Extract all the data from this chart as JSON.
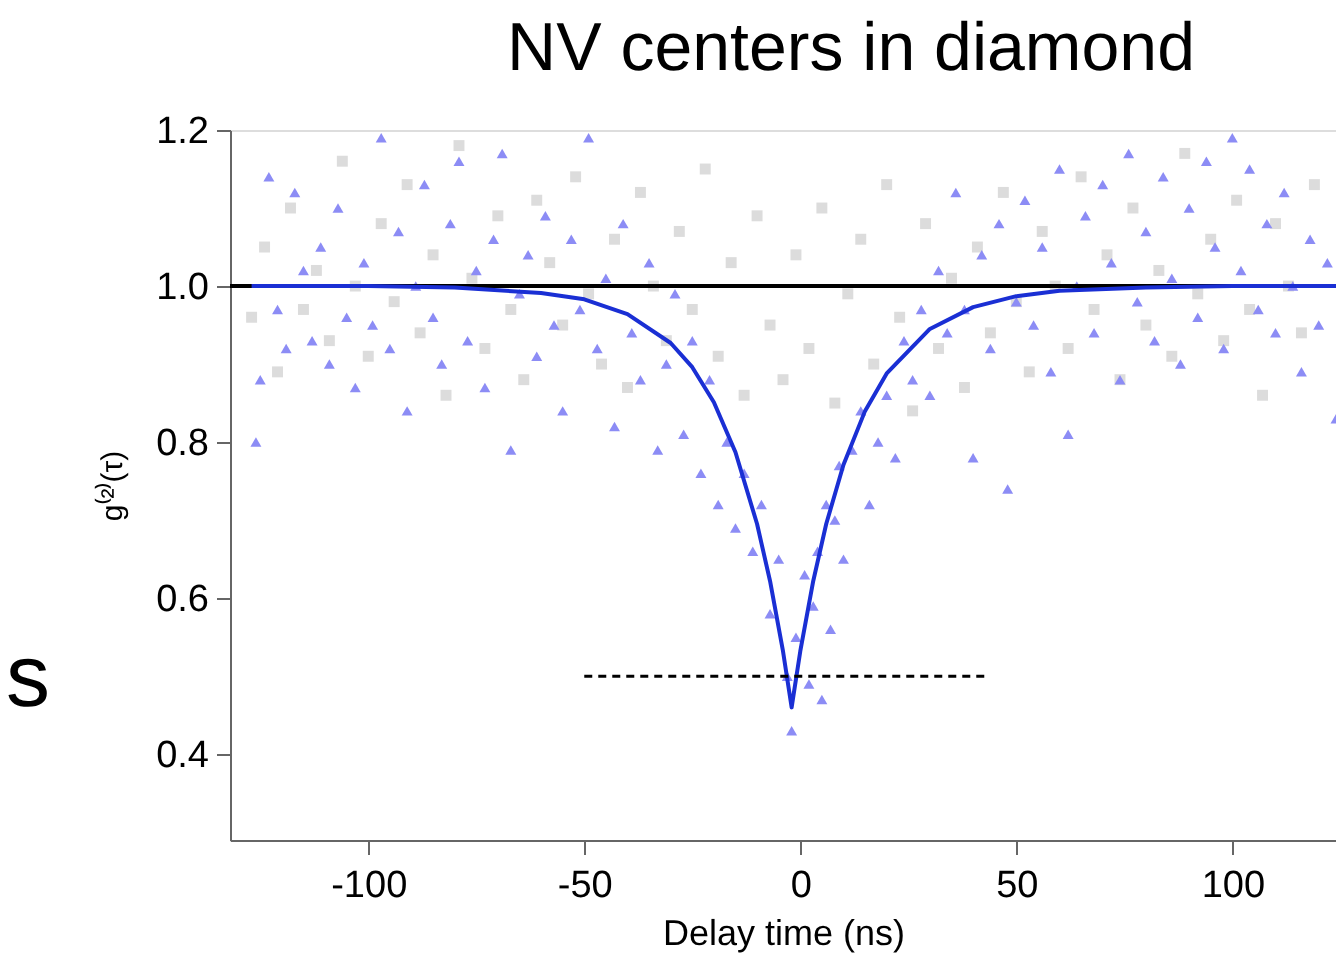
{
  "chart_data": {
    "type": "scatter",
    "title": "NV centers in diamond",
    "xlabel": "Delay time (ns)",
    "ylabel": "g⁽²⁾(τ)",
    "xlim": [
      -132,
      124
    ],
    "ylim": [
      0.29,
      1.2
    ],
    "xticks": [
      -100,
      -50,
      0,
      50,
      100
    ],
    "yticks": [
      {
        "value": 0.4,
        "label": "0.4"
      },
      {
        "value": 0.6,
        "label": "0.6"
      },
      {
        "value": 0.8,
        "label": "0.8"
      },
      {
        "value": 1.0,
        "label": "1.0"
      },
      {
        "value": 1.2,
        "label": "1.2"
      }
    ],
    "grid": false,
    "annotations": [
      "s"
    ],
    "ref_lines": [
      {
        "axis": "y",
        "value": 1.0,
        "label": null,
        "color": "#000000",
        "line_style": "solid"
      }
    ],
    "series": [
      {
        "marker": "square",
        "color": "#dcdcdc",
        "x": [
          -127,
          -124,
          -121,
          -118,
          -115,
          -112,
          -109,
          -106,
          -103,
          -100,
          -97,
          -94,
          -91,
          -88,
          -85,
          -82,
          -79,
          -76,
          -73,
          -70,
          -67,
          -64,
          -61,
          -58,
          -55,
          -52,
          -49,
          -46,
          -43,
          -40,
          -37,
          -34,
          -31,
          -28,
          -25,
          -22,
          -19,
          -16,
          -13,
          -10,
          -7,
          -4,
          -1,
          2,
          5,
          8,
          11,
          14,
          17,
          20,
          23,
          26,
          29,
          32,
          35,
          38,
          41,
          44,
          47,
          50,
          53,
          56,
          59,
          62,
          65,
          68,
          71,
          74,
          77,
          80,
          83,
          86,
          89,
          92,
          95,
          98,
          101,
          104,
          107,
          110,
          113,
          116,
          119
        ],
        "values": [
          0.96,
          1.05,
          0.89,
          1.1,
          0.97,
          1.02,
          0.93,
          1.16,
          1.0,
          0.91,
          1.08,
          0.98,
          1.13,
          0.94,
          1.04,
          0.86,
          1.18,
          1.01,
          0.92,
          1.09,
          0.97,
          0.88,
          1.11,
          1.03,
          0.95,
          1.14,
          0.99,
          0.9,
          1.06,
          0.87,
          1.12,
          1.0,
          0.93,
          1.07,
          0.97,
          1.15,
          0.91,
          1.03,
          0.86,
          1.09,
          0.95,
          0.88,
          1.04,
          0.92,
          1.1,
          0.85,
          0.99,
          1.06,
          0.9,
          1.13,
          0.96,
          0.84,
          1.08,
          0.92,
          1.01,
          0.87,
          1.05,
          0.94,
          1.12,
          0.98,
          0.89,
          1.07,
          1.0,
          0.92,
          1.14,
          0.97,
          1.04,
          0.88,
          1.1,
          0.95,
          1.02,
          0.91,
          1.17,
          0.99,
          1.06,
          0.93,
          1.11,
          0.97,
          0.86,
          1.08,
          1.0,
          0.94,
          1.13
        ]
      },
      {
        "marker": "triangle",
        "color": "#8c8cf5",
        "x": [
          -126,
          -125,
          -123,
          -121,
          -119,
          -117,
          -115,
          -113,
          -111,
          -109,
          -107,
          -105,
          -103,
          -101,
          -99,
          -97,
          -95,
          -93,
          -91,
          -89,
          -87,
          -85,
          -83,
          -81,
          -79,
          -77,
          -75,
          -73,
          -71,
          -69,
          -67,
          -65,
          -63,
          -61,
          -59,
          -57,
          -55,
          -53,
          -51,
          -49,
          -47,
          -45,
          -43,
          -41,
          -39,
          -37,
          -35,
          -33,
          -31,
          -29,
          -27,
          -25,
          -23,
          -21,
          -19,
          -17,
          -15,
          -13,
          -11,
          -9,
          -7,
          -5,
          -3,
          -2,
          -1,
          1,
          2,
          3,
          4,
          5,
          6,
          7,
          8,
          9,
          10,
          12,
          14,
          16,
          18,
          20,
          22,
          24,
          26,
          28,
          30,
          32,
          34,
          36,
          38,
          40,
          42,
          44,
          46,
          48,
          50,
          52,
          54,
          56,
          58,
          60,
          62,
          64,
          66,
          68,
          70,
          72,
          74,
          76,
          78,
          80,
          82,
          84,
          86,
          88,
          90,
          92,
          94,
          96,
          98,
          100,
          102,
          104,
          106,
          108,
          110,
          112,
          114,
          116,
          118,
          120,
          122,
          124
        ],
        "values": [
          0.8,
          0.88,
          1.14,
          0.97,
          0.92,
          1.12,
          1.02,
          0.93,
          1.05,
          0.9,
          1.1,
          0.96,
          0.87,
          1.03,
          0.95,
          1.19,
          0.92,
          1.07,
          0.84,
          1.0,
          1.13,
          0.96,
          0.9,
          1.08,
          1.16,
          0.93,
          1.02,
          0.87,
          1.06,
          1.17,
          0.79,
          0.99,
          1.04,
          0.91,
          1.09,
          0.95,
          0.84,
          1.06,
          0.97,
          1.19,
          0.92,
          1.01,
          0.82,
          1.08,
          0.94,
          0.88,
          1.03,
          0.79,
          0.9,
          0.99,
          0.81,
          0.93,
          0.76,
          0.88,
          0.72,
          0.8,
          0.69,
          0.76,
          0.66,
          0.72,
          0.58,
          0.65,
          0.5,
          0.43,
          0.55,
          0.63,
          0.49,
          0.59,
          0.66,
          0.47,
          0.72,
          0.56,
          0.7,
          0.77,
          0.65,
          0.79,
          0.84,
          0.72,
          0.8,
          0.86,
          0.78,
          0.93,
          0.88,
          0.97,
          0.86,
          1.02,
          0.94,
          1.12,
          0.97,
          0.78,
          1.04,
          0.92,
          1.08,
          0.74,
          0.98,
          1.11,
          0.95,
          1.05,
          0.89,
          1.15,
          0.81,
          1.0,
          1.09,
          0.94,
          1.13,
          1.03,
          0.88,
          1.17,
          0.98,
          1.07,
          0.93,
          1.14,
          1.01,
          0.9,
          1.1,
          0.96,
          1.16,
          1.05,
          0.92,
          1.19,
          1.02,
          1.15,
          0.97,
          1.08,
          0.94,
          1.12,
          1.0,
          0.89,
          1.06,
          0.95,
          1.03,
          0.83
        ]
      },
      {
        "type": "line",
        "line_style": "solid",
        "color": "#1a2fd4",
        "x": [
          -127,
          -100,
          -80,
          -60,
          -50,
          -40,
          -30,
          -25,
          -20,
          -15,
          -10,
          -7,
          -4,
          -2,
          0,
          3,
          6,
          10,
          15,
          20,
          30,
          40,
          50,
          60,
          80,
          100,
          124
        ],
        "values": [
          1.0,
          1.0,
          0.998,
          0.991,
          0.983,
          0.964,
          0.927,
          0.896,
          0.851,
          0.787,
          0.695,
          0.622,
          0.532,
          0.46,
          0.532,
          0.622,
          0.695,
          0.771,
          0.84,
          0.888,
          0.945,
          0.973,
          0.987,
          0.994,
          0.998,
          1.0,
          1.0
        ]
      },
      {
        "type": "line",
        "line_style": "dashed",
        "color": "#000000",
        "x": [
          -50,
          43
        ],
        "values": [
          0.5,
          0.5
        ]
      }
    ]
  }
}
